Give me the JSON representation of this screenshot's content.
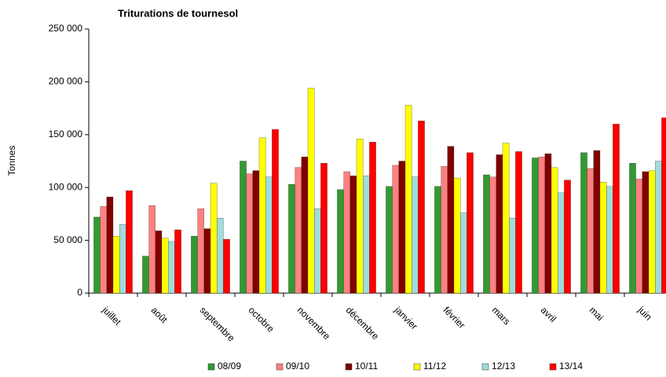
{
  "chart_data": {
    "type": "bar",
    "title": "Triturations de tournesol",
    "y_label": "Tonnes",
    "categories": [
      "juillet",
      "août",
      "septembre",
      "octobre",
      "novembre",
      "décembre",
      "janvier",
      "février",
      "mars",
      "avril",
      "mai",
      "juin"
    ],
    "series": [
      {
        "name": "08/09",
        "color": "#339933",
        "values": [
          72000,
          35000,
          54000,
          125000,
          103000,
          98000,
          101000,
          101000,
          112000,
          128000,
          133000,
          123000
        ]
      },
      {
        "name": "09/10",
        "color": "#ff8080",
        "values": [
          82000,
          83000,
          80000,
          113000,
          119000,
          115000,
          121000,
          120000,
          110000,
          129000,
          118000,
          108000
        ]
      },
      {
        "name": "10/11",
        "color": "#800000",
        "values": [
          91000,
          59000,
          61000,
          116000,
          129000,
          111000,
          125000,
          139000,
          131000,
          132000,
          135000,
          115000
        ]
      },
      {
        "name": "11/12",
        "color": "#ffff00",
        "values": [
          54000,
          52000,
          104000,
          147000,
          194000,
          146000,
          178000,
          109000,
          142000,
          119000,
          105000,
          116000
        ]
      },
      {
        "name": "12/13",
        "color": "#a0dcdc",
        "values": [
          65000,
          49000,
          71000,
          110000,
          80000,
          111000,
          110000,
          76000,
          71000,
          95000,
          101000,
          125000
        ]
      },
      {
        "name": "13/14",
        "color": "#ff0000",
        "values": [
          97000,
          60000,
          51000,
          155000,
          123000,
          143000,
          163000,
          133000,
          134000,
          107000,
          160000,
          166000
        ]
      }
    ],
    "ylim": [
      0,
      250000
    ],
    "yticks": [
      0,
      {
        "value": 50000,
        "label": "50 000"
      },
      {
        "value": 100000,
        "label": "100 000"
      },
      {
        "value": 150000,
        "label": "150 000"
      },
      {
        "value": 200000,
        "label": "200 000"
      },
      {
        "value": 250000,
        "label": "250 000"
      }
    ],
    "legend": "bottom"
  }
}
